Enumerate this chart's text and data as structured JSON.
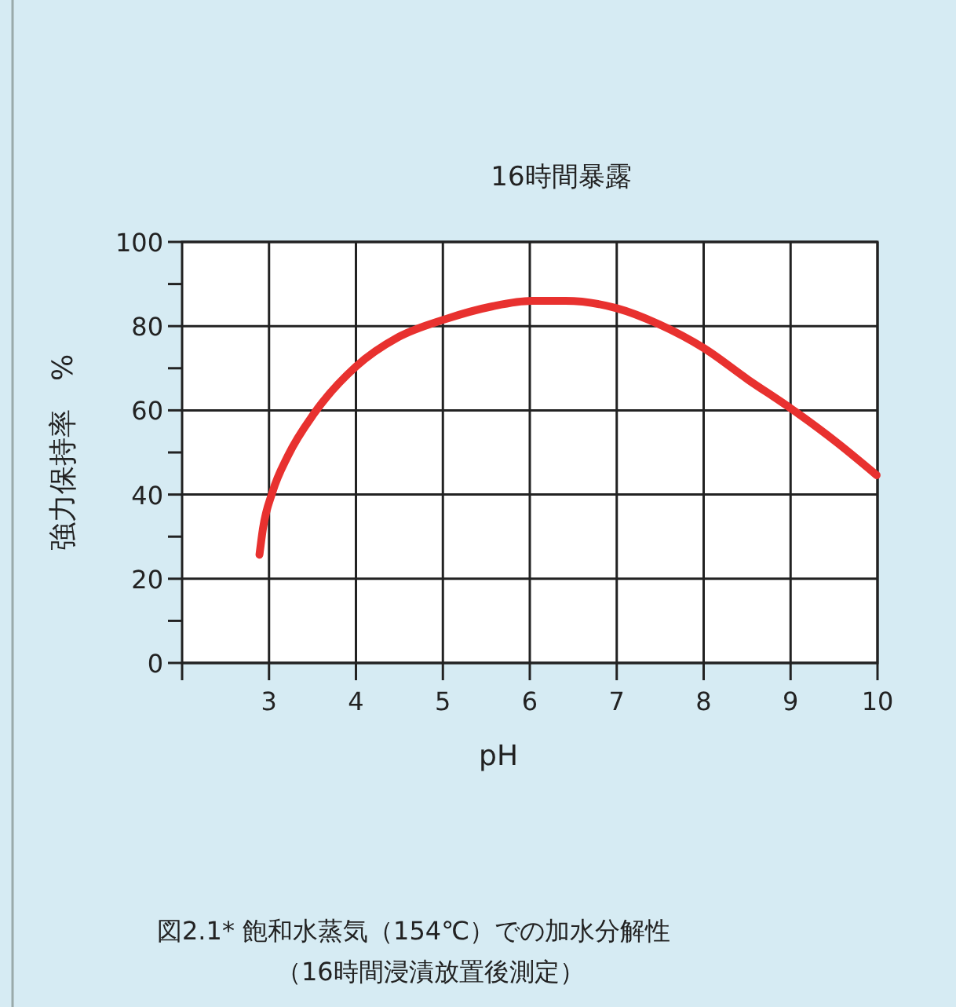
{
  "chart_data": {
    "type": "line",
    "title": "16時間暴露",
    "xlabel": "pH",
    "ylabel": "強力保持率　%",
    "annotations": [
      "図2.1*  飽和水蒸気（154℃）での加水分解性",
      "（16時間浸漬放置後測定）"
    ],
    "xlim": [
      2,
      10
    ],
    "xticks": [
      {
        "value": 2,
        "label": null
      },
      3,
      4,
      5,
      6,
      7,
      8,
      9,
      10
    ],
    "ylim": [
      0,
      100
    ],
    "yticks": [
      0,
      {
        "value": 10,
        "label": null
      },
      20,
      {
        "value": 30,
        "label": null
      },
      40,
      {
        "value": 50,
        "label": null
      },
      60,
      {
        "value": 70,
        "label": null
      },
      80,
      {
        "value": 90,
        "label": null
      },
      100
    ],
    "grid": true,
    "marker": "none",
    "line_style": "solid",
    "series": [
      {
        "color": "#e8312f",
        "x": [
          2.89,
          2.93,
          3.04,
          3.22,
          3.52,
          4.0,
          4.48,
          5.02,
          5.57,
          6.02,
          6.41,
          6.99,
          7.49,
          8.0,
          8.51,
          9.0,
          9.53,
          9.99
        ],
        "values": [
          25.7,
          31.9,
          40.6,
          49.3,
          59.3,
          70.4,
          77.3,
          81.6,
          84.7,
          86,
          86,
          84.3,
          80.4,
          74.8,
          67.3,
          60.5,
          52.4,
          44.6
        ]
      }
    ]
  }
}
